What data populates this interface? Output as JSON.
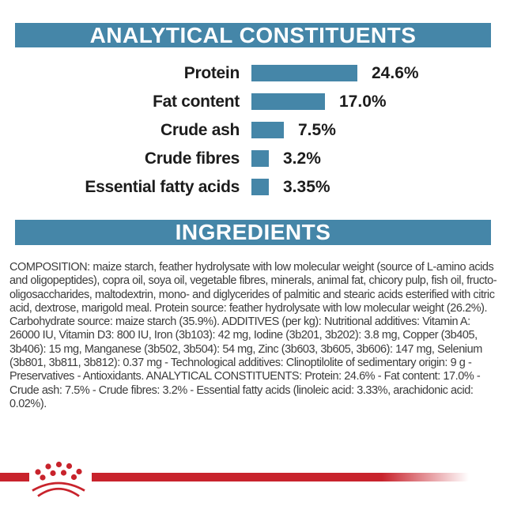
{
  "colors": {
    "page_bg": "#FFFFFF",
    "banner_bg": "#4586A8",
    "banner_text": "#FFFFFF",
    "bar_fill": "#4586A8",
    "chart_text": "#1C1C1C",
    "body_text": "#3C3C3C",
    "brand_red": "#C8232C"
  },
  "sections": {
    "analytical": {
      "title": "ANALYTICAL CONSTITUENTS"
    },
    "ingredients": {
      "title": "INGREDIENTS",
      "body": "COMPOSITION: maize starch, feather hydrolysate with low molecular weight (source of L-amino acids and oligopeptides), copra oil, soya oil, vegetable fibres, minerals, animal fat, chicory pulp, fish oil, fructo-oligosaccharides, maltodextrin, mono- and diglycerides of palmitic and stearic acids esterified with citric acid, dextrose, marigold meal. Protein source: feather hydrolysate with low molecular weight (26.2%). Carbohydrate source: maize starch (35.9%). ADDITIVES (per kg): Nutritional additives: Vitamin A: 26000 IU, Vitamin D3: 800 IU, Iron (3b103): 42 mg, Iodine (3b201, 3b202): 3.8 mg, Copper (3b405, 3b406): 15 mg, Manganese (3b502, 3b504): 54 mg, Zinc (3b603, 3b605, 3b606): 147 mg, Selenium (3b801, 3b811, 3b812): 0.37 mg - Technological additives: Clinoptilolite of sedimentary origin: 9 g - Preservatives - Antioxidants. ANALYTICAL CONSTITUENTS: Protein: 24.6% - Fat content: 17.0% - Crude ash: 7.5% - Crude fibres: 3.2% - Essential fatty acids (linoleic acid: 3.33%, arachidonic acid: 0.02%)."
    }
  },
  "chart_data": {
    "type": "bar",
    "orientation": "horizontal",
    "title": "ANALYTICAL CONSTITUENTS",
    "categories": [
      "Protein",
      "Fat content",
      "Crude ash",
      "Crude fibres",
      "Essential fatty acids"
    ],
    "values": [
      24.6,
      17.0,
      7.5,
      3.2,
      3.35
    ],
    "value_labels": [
      "24.6%",
      "17.0%",
      "7.5%",
      "3.2%",
      "3.35%"
    ],
    "unit": "%",
    "xlim": [
      0,
      24.6
    ],
    "grid": false,
    "legend": false,
    "bar_color": "#4586A8"
  },
  "icons": {
    "crown_logo": "royal-canin-crown"
  }
}
